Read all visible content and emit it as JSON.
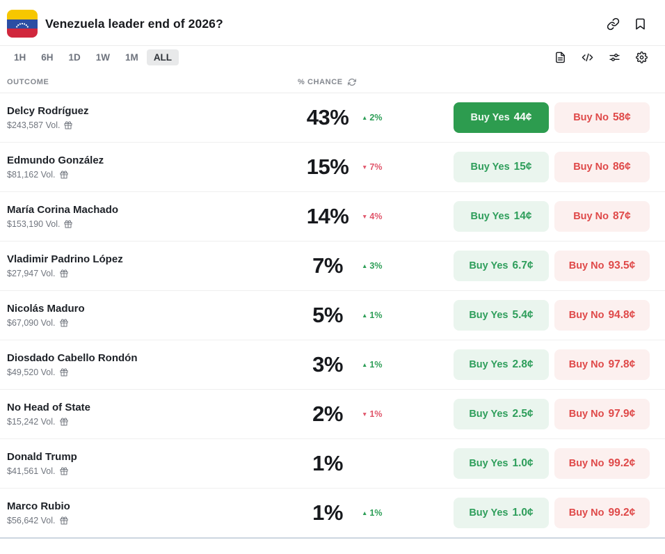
{
  "header": {
    "title": "Venezuela leader end of 2026?",
    "icons": [
      "link-icon",
      "bookmark-icon"
    ]
  },
  "toolbar": {
    "time_filters": [
      "1H",
      "6H",
      "1D",
      "1W",
      "1M",
      "ALL"
    ],
    "active_filter": "ALL",
    "view_icons": [
      "document-icon",
      "code-icon",
      "sliders-icon",
      "gear-icon"
    ]
  },
  "table": {
    "columns": {
      "outcome": "OUTCOME",
      "chance": "% CHANCE"
    },
    "chance_refresh_icon": "refresh-icon",
    "volume_icon": "gift-icon",
    "buy_yes_label": "Buy Yes",
    "buy_no_label": "Buy No",
    "rows": [
      {
        "name": "Delcy Rodríguez",
        "volume": "$243,587 Vol.",
        "chance": "43%",
        "change": "2%",
        "change_dir": "up",
        "yes_price": "44¢",
        "no_price": "58¢",
        "yes_style": "solid"
      },
      {
        "name": "Edmundo González",
        "volume": "$81,162 Vol.",
        "chance": "15%",
        "change": "7%",
        "change_dir": "down",
        "yes_price": "15¢",
        "no_price": "86¢",
        "yes_style": "light"
      },
      {
        "name": "María Corina Machado",
        "volume": "$153,190 Vol.",
        "chance": "14%",
        "change": "4%",
        "change_dir": "down",
        "yes_price": "14¢",
        "no_price": "87¢",
        "yes_style": "light"
      },
      {
        "name": "Vladimir Padrino López",
        "volume": "$27,947 Vol.",
        "chance": "7%",
        "change": "3%",
        "change_dir": "up",
        "yes_price": "6.7¢",
        "no_price": "93.5¢",
        "yes_style": "light"
      },
      {
        "name": "Nicolás Maduro",
        "volume": "$67,090 Vol.",
        "chance": "5%",
        "change": "1%",
        "change_dir": "up",
        "yes_price": "5.4¢",
        "no_price": "94.8¢",
        "yes_style": "light"
      },
      {
        "name": "Diosdado Cabello Rondón",
        "volume": "$49,520 Vol.",
        "chance": "3%",
        "change": "1%",
        "change_dir": "up",
        "yes_price": "2.8¢",
        "no_price": "97.8¢",
        "yes_style": "light"
      },
      {
        "name": "No Head of State",
        "volume": "$15,242 Vol.",
        "chance": "2%",
        "change": "1%",
        "change_dir": "down",
        "yes_price": "2.5¢",
        "no_price": "97.9¢",
        "yes_style": "light"
      },
      {
        "name": "Donald Trump",
        "volume": "$41,561 Vol.",
        "chance": "1%",
        "change": "",
        "change_dir": "none",
        "yes_price": "1.0¢",
        "no_price": "99.2¢",
        "yes_style": "light"
      },
      {
        "name": "Marco Rubio",
        "volume": "$56,642 Vol.",
        "chance": "1%",
        "change": "1%",
        "change_dir": "up",
        "yes_price": "1.0¢",
        "no_price": "99.2¢",
        "yes_style": "light"
      }
    ]
  },
  "colors": {
    "yes_solid_bg": "#2d9c4f",
    "yes_light_bg": "#eaf5ee",
    "yes_text": "#2e9e5b",
    "no_light_bg": "#fcf0ef",
    "no_text": "#df4949",
    "change_up": "#2d9e57",
    "change_down": "#e0566b",
    "flag_yellow": "#f6c700",
    "flag_blue": "#2b4ea3",
    "flag_red": "#d0273d",
    "bottom_line": "#ccd6e0"
  }
}
